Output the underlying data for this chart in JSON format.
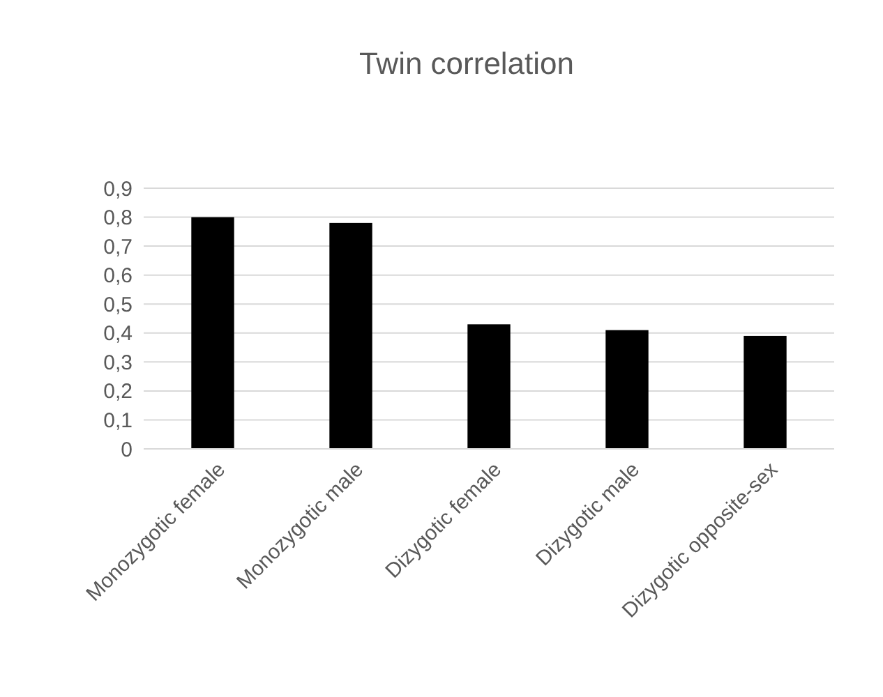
{
  "chart_data": {
    "type": "bar",
    "title": "Twin correlation",
    "categories": [
      "Monozygotic female",
      "Monozygotic male",
      "Dizygotic female",
      "Dizygotic male",
      "Dizygotic opposite-sex"
    ],
    "values": [
      0.8,
      0.78,
      0.43,
      0.41,
      0.39
    ],
    "color": "#000000",
    "ylim": [
      0,
      0.9
    ],
    "yticks": [
      {
        "value": 0,
        "label": "0"
      },
      {
        "value": 0.1,
        "label": "0,1"
      },
      {
        "value": 0.2,
        "label": "0,2"
      },
      {
        "value": 0.3,
        "label": "0,3"
      },
      {
        "value": 0.4,
        "label": "0,4"
      },
      {
        "value": 0.5,
        "label": "0,5"
      },
      {
        "value": 0.6,
        "label": "0,6"
      },
      {
        "value": 0.7,
        "label": "0,7"
      },
      {
        "value": 0.8,
        "label": "0,8"
      },
      {
        "value": 0.9,
        "label": "0,9"
      }
    ],
    "grid": "y"
  }
}
